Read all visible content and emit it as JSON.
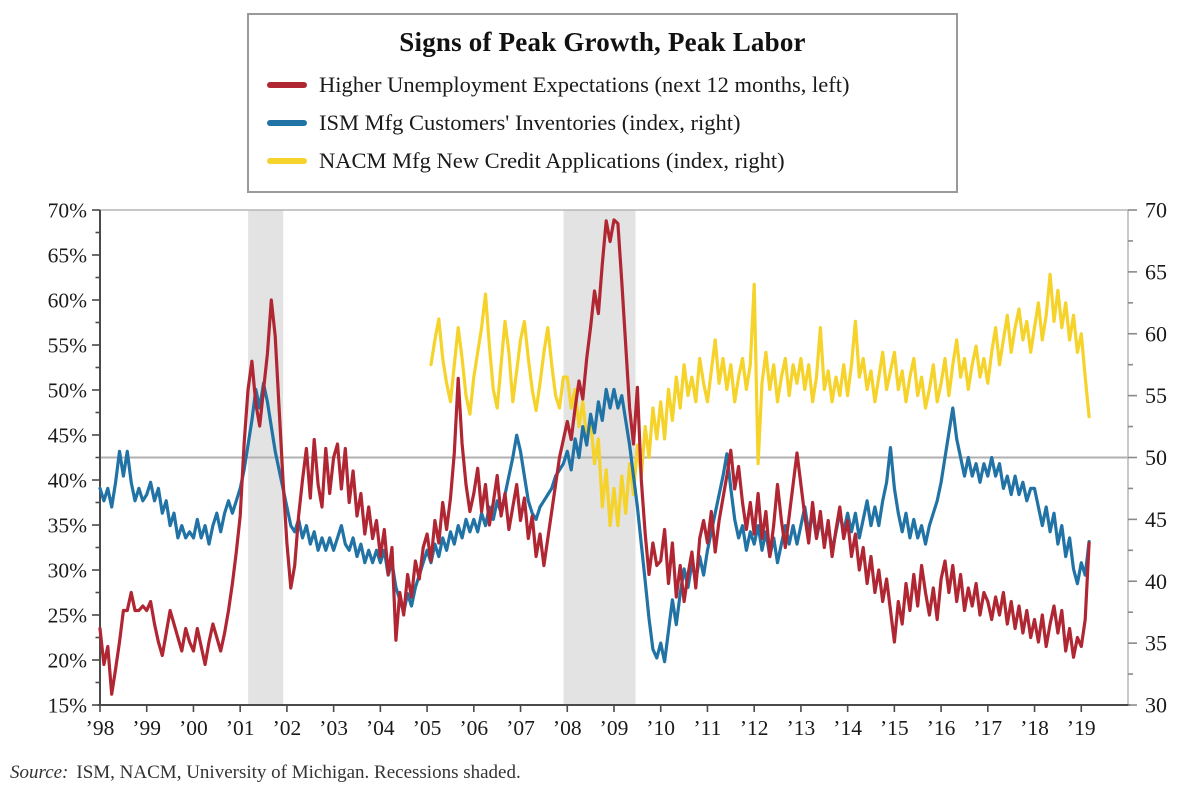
{
  "legend": {
    "title": "Signs of Peak Growth, Peak Labor"
  },
  "source_note": {
    "label": "Source:",
    "text": "ISM, NACM, University of Michigan. Recessions shaded."
  },
  "chart_data": {
    "type": "line",
    "title": "Signs of Peak Growth, Peak Labor",
    "grid": "off",
    "legend_position": "top",
    "x_axis": {
      "domain": [
        1998,
        2020
      ],
      "tick_years": [
        1998,
        1999,
        2000,
        2001,
        2002,
        2003,
        2004,
        2005,
        2006,
        2007,
        2008,
        2009,
        2010,
        2011,
        2012,
        2013,
        2014,
        2015,
        2016,
        2017,
        2018,
        2019
      ],
      "tick_labels": [
        "’98",
        "’99",
        "’00",
        "’01",
        "’02",
        "’03",
        "’04",
        "’05",
        "’06",
        "’07",
        "’08",
        "’09",
        "’10",
        "’11",
        "’12",
        "’13",
        "’14",
        "’15",
        "’16",
        "’17",
        "’18",
        "’19"
      ]
    },
    "left_axis": {
      "min": 15,
      "max": 70,
      "major_step": 5,
      "minor_step": 2.5,
      "unit": "%",
      "tick_labels": [
        "70%",
        "65%",
        "60%",
        "55%",
        "50%",
        "45%",
        "40%",
        "35%",
        "30%",
        "25%",
        "20%",
        "15%"
      ]
    },
    "right_axis": {
      "min": 30,
      "max": 70,
      "major_step": 5,
      "minor_step": 2.5,
      "tick_labels": [
        "70",
        "65",
        "60",
        "55",
        "50",
        "45",
        "40",
        "35",
        "30"
      ]
    },
    "reference_line": {
      "axis": "right",
      "value": 50,
      "color": "#b0b0b0"
    },
    "recessions": [
      {
        "start": 2001.17,
        "end": 2001.92
      },
      {
        "start": 2007.92,
        "end": 2009.46
      }
    ],
    "recession_color": "#e3e3e3",
    "series": [
      {
        "name": "NACM Mfg New Credit Applications (index, right)",
        "axis": "right",
        "color": "#f5d32a",
        "freq": "monthly",
        "start_year": 2005,
        "start_month": 2,
        "values": [
          57.5,
          59.5,
          61.2,
          58,
          56,
          54.5,
          57.5,
          60.5,
          58,
          55,
          53.5,
          56.5,
          58.5,
          60.5,
          63.2,
          59,
          55.5,
          54,
          57.5,
          61,
          58.5,
          54.5,
          57,
          59.5,
          61,
          58,
          55.5,
          53.8,
          56,
          58.5,
          60.5,
          57.5,
          55,
          54,
          56.5,
          56.5,
          54,
          55.5,
          52.5,
          54.5,
          51.5,
          53,
          49.5,
          51.5,
          46,
          49,
          44.5,
          47.5,
          44.5,
          48.5,
          45.5,
          49.5,
          47,
          51,
          48.5,
          52.5,
          50,
          54,
          51.5,
          54.5,
          51.5,
          55.5,
          53,
          56.5,
          54,
          57.5,
          55,
          56.5,
          54.5,
          58,
          56,
          54.5,
          57,
          59.5,
          56,
          58,
          55.5,
          57.5,
          54.5,
          56.5,
          58,
          55.5,
          57.5,
          64,
          49.5,
          56,
          58.5,
          55.5,
          57.5,
          54.5,
          56.5,
          58,
          55,
          57.5,
          56,
          58,
          55.5,
          57.5,
          54.5,
          56.5,
          60.5,
          55.5,
          57,
          54.5,
          56.5,
          55,
          57.5,
          55,
          57.5,
          61,
          56.5,
          58,
          55.5,
          57,
          54.5,
          56.5,
          58.5,
          55.5,
          57,
          58.5,
          55.5,
          57,
          54.5,
          56.5,
          58,
          55,
          56.5,
          54,
          55.5,
          57.5,
          54.5,
          56,
          58,
          55,
          57.5,
          59.5,
          56.5,
          58,
          55.5,
          57.5,
          59,
          56.5,
          58,
          56,
          58.5,
          60.5,
          57.5,
          59.5,
          61.5,
          58.5,
          60.5,
          62,
          59.5,
          61,
          58.5,
          60.5,
          62.5,
          59.5,
          61.5,
          64.8,
          61,
          63.5,
          60.5,
          62.5,
          59.5,
          61.5,
          58.5,
          60,
          56.5,
          53.3
        ]
      },
      {
        "name": "ISM Mfg Customers' Inventories (index, right)",
        "axis": "right",
        "color": "#2173a6",
        "freq": "monthly",
        "start_year": 1998,
        "start_month": 1,
        "values": [
          47.5,
          46.5,
          47.5,
          46,
          48,
          50.5,
          48.5,
          50.5,
          48,
          46.5,
          47.5,
          46.5,
          47,
          48,
          46.5,
          47.5,
          45.5,
          46.5,
          44.5,
          45.5,
          43.5,
          44.5,
          43.5,
          44,
          43.5,
          45,
          43.5,
          44.5,
          43,
          44.5,
          45.5,
          44,
          45.5,
          46.5,
          45.5,
          46.5,
          47.5,
          49,
          51,
          53,
          55.5,
          54,
          56,
          54.5,
          52.5,
          50.5,
          49,
          47.5,
          46,
          44.5,
          44,
          45,
          43.5,
          44.5,
          43,
          44,
          42.5,
          43.5,
          42.5,
          43.5,
          42.5,
          43.5,
          44.5,
          43,
          42.5,
          43.5,
          42,
          43,
          41.5,
          42.5,
          41.5,
          42.5,
          41.5,
          42.5,
          40.5,
          41.5,
          39.5,
          38.5,
          37.5,
          39,
          38,
          39.5,
          40.5,
          41.5,
          42.5,
          41.5,
          43,
          42,
          43.5,
          42.5,
          44,
          43,
          44.5,
          43.5,
          45,
          44,
          45,
          44,
          45.5,
          44.5,
          46,
          45,
          46.5,
          45.5,
          47,
          48.5,
          50,
          51.8,
          50.5,
          48.5,
          46.5,
          45.5,
          45,
          46,
          46.5,
          47,
          47.5,
          48.5,
          49,
          49.5,
          50.5,
          49,
          51.5,
          50,
          52.5,
          51,
          53.5,
          52,
          54.5,
          53,
          55.5,
          54,
          55.5,
          54,
          55,
          53,
          51,
          48.5,
          46,
          43,
          40,
          37,
          34.5,
          33.8,
          35,
          33.5,
          36,
          38.5,
          36.5,
          39,
          41,
          39.5,
          41.5,
          40,
          42,
          40.5,
          42.5,
          44,
          45.5,
          47,
          48.5,
          50.3,
          47.5,
          45,
          43.5,
          44.5,
          42.5,
          44,
          43,
          44.5,
          42.5,
          44,
          42,
          43.5,
          41.5,
          43,
          44.5,
          43,
          44.5,
          43,
          44.5,
          46,
          44,
          45.5,
          43.5,
          45,
          43,
          44.5,
          42.5,
          44,
          45.5,
          44,
          45.5,
          44,
          45.5,
          43.5,
          45,
          46.5,
          44.5,
          46,
          44.5,
          46.5,
          48,
          50.8,
          47.5,
          45.5,
          44,
          45.5,
          43.5,
          45,
          43.5,
          44.5,
          43,
          44.5,
          45.5,
          46.5,
          48,
          50,
          52,
          54,
          51.5,
          50,
          48.5,
          50,
          48.5,
          49.5,
          48,
          49.5,
          48.5,
          50,
          48.5,
          49.5,
          47.5,
          48.5,
          47,
          48.5,
          47,
          48,
          46.5,
          47.5,
          47.5,
          46,
          44.5,
          46,
          44,
          45.5,
          43,
          44.5,
          42,
          43.5,
          41,
          39.8,
          41.5,
          40.5,
          43.2
        ]
      },
      {
        "name": "Higher Unemployment Expectations (next 12 months, left)",
        "axis": "left",
        "color": "#b02733",
        "freq": "monthly",
        "start_year": 1998,
        "start_month": 1,
        "values": [
          23.5,
          19.5,
          21.5,
          16.2,
          19,
          22,
          25.5,
          25.5,
          27.5,
          25.5,
          25.5,
          26,
          25.5,
          26.5,
          24,
          22,
          20.5,
          23,
          25.5,
          24,
          22.5,
          21,
          23.5,
          22,
          21,
          23.5,
          21.5,
          19.5,
          22,
          24,
          22.5,
          21,
          23,
          25.5,
          28.5,
          32,
          36,
          44,
          50,
          53.2,
          48.5,
          46,
          50,
          54,
          60,
          56,
          48,
          40,
          33,
          28,
          30.5,
          36,
          40,
          43.5,
          38,
          44.5,
          39.5,
          37,
          43.5,
          38.5,
          42.5,
          44,
          39,
          43.5,
          37.5,
          41,
          36,
          38.5,
          34,
          37,
          33.5,
          35.5,
          31.5,
          34.5,
          29.5,
          32.5,
          22.2,
          27.5,
          25,
          29.5,
          27,
          31,
          29,
          32.5,
          34,
          31,
          35.5,
          33,
          37.5,
          34.5,
          38,
          43,
          51.3,
          44,
          39.5,
          36.5,
          38.5,
          41.3,
          36.5,
          39.5,
          35,
          37.5,
          40.5,
          36,
          38.5,
          34.5,
          37,
          39.5,
          35.5,
          38,
          33.5,
          36,
          31.5,
          34,
          30.5,
          33.5,
          36.5,
          39.5,
          42.5,
          44.5,
          46.5,
          44.5,
          48,
          51,
          49,
          53.5,
          57,
          61,
          58.5,
          64,
          68.8,
          66.5,
          68.9,
          68.5,
          62,
          55,
          48,
          44,
          50.3,
          40,
          34,
          29.5,
          33,
          30.5,
          31,
          34.5,
          28.5,
          33,
          27,
          30.5,
          26.5,
          29.5,
          32,
          28,
          33.5,
          35.5,
          33,
          36.5,
          32,
          35.5,
          38,
          40.5,
          43.3,
          39,
          41.5,
          37.5,
          34.5,
          37.5,
          34,
          38.5,
          33.5,
          36.5,
          31.5,
          35,
          39.5,
          35.5,
          32.5,
          36,
          39.5,
          43,
          39.5,
          36,
          33,
          37.5,
          33.5,
          36.5,
          32.5,
          35.5,
          31.5,
          34.5,
          37,
          33.5,
          35.5,
          31.5,
          34,
          30,
          32.5,
          28.5,
          31.5,
          27.5,
          30,
          26.5,
          29,
          25.5,
          22,
          26.5,
          24,
          28.5,
          25.5,
          29.5,
          26,
          30.5,
          27.5,
          25,
          28,
          24.5,
          29,
          31,
          27.5,
          30.5,
          26.5,
          29.5,
          25.5,
          28,
          26,
          28.5,
          25,
          27.5,
          26.5,
          24.5,
          27,
          25,
          27.5,
          24,
          26.5,
          23.5,
          26,
          23,
          25.5,
          22.5,
          24.5,
          22,
          25,
          21.5,
          24,
          26,
          23,
          25.5,
          21,
          23.5,
          20.3,
          22.5,
          21.5,
          24.5,
          33
        ]
      }
    ]
  }
}
